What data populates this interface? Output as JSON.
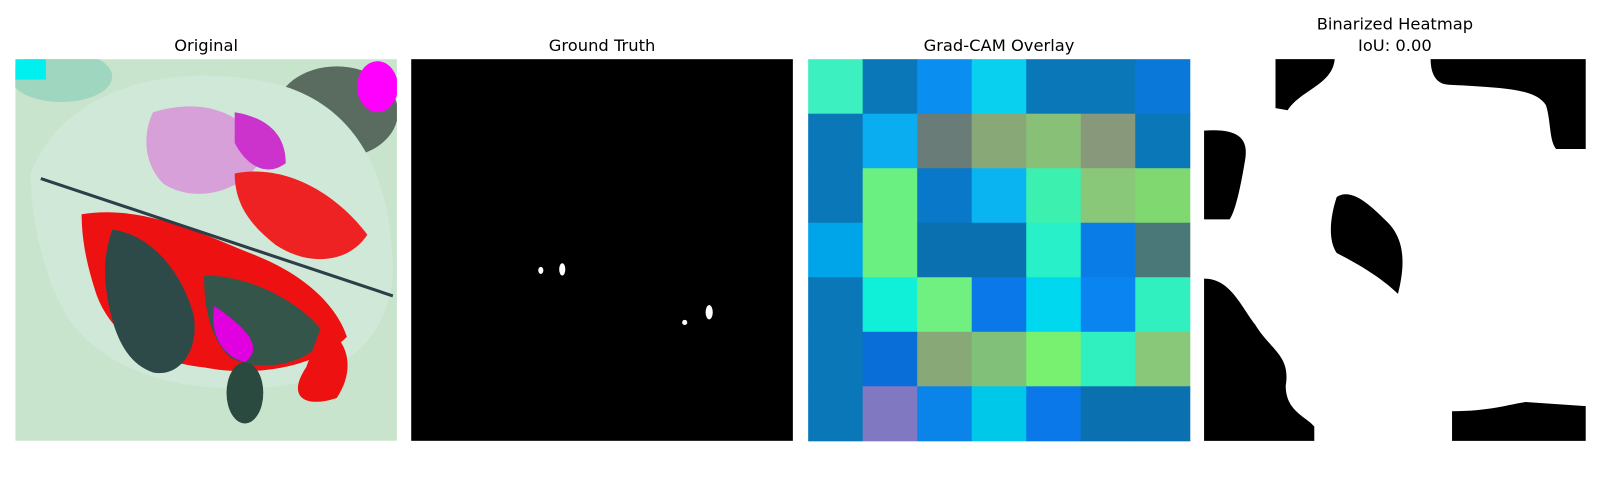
{
  "panels": [
    {
      "title": [
        "Original"
      ]
    },
    {
      "title": [
        "Ground Truth"
      ]
    },
    {
      "title": [
        "Grad-CAM Overlay"
      ]
    },
    {
      "title": [
        "Binarized Heatmap",
        "IoU: 0.00"
      ]
    }
  ]
}
